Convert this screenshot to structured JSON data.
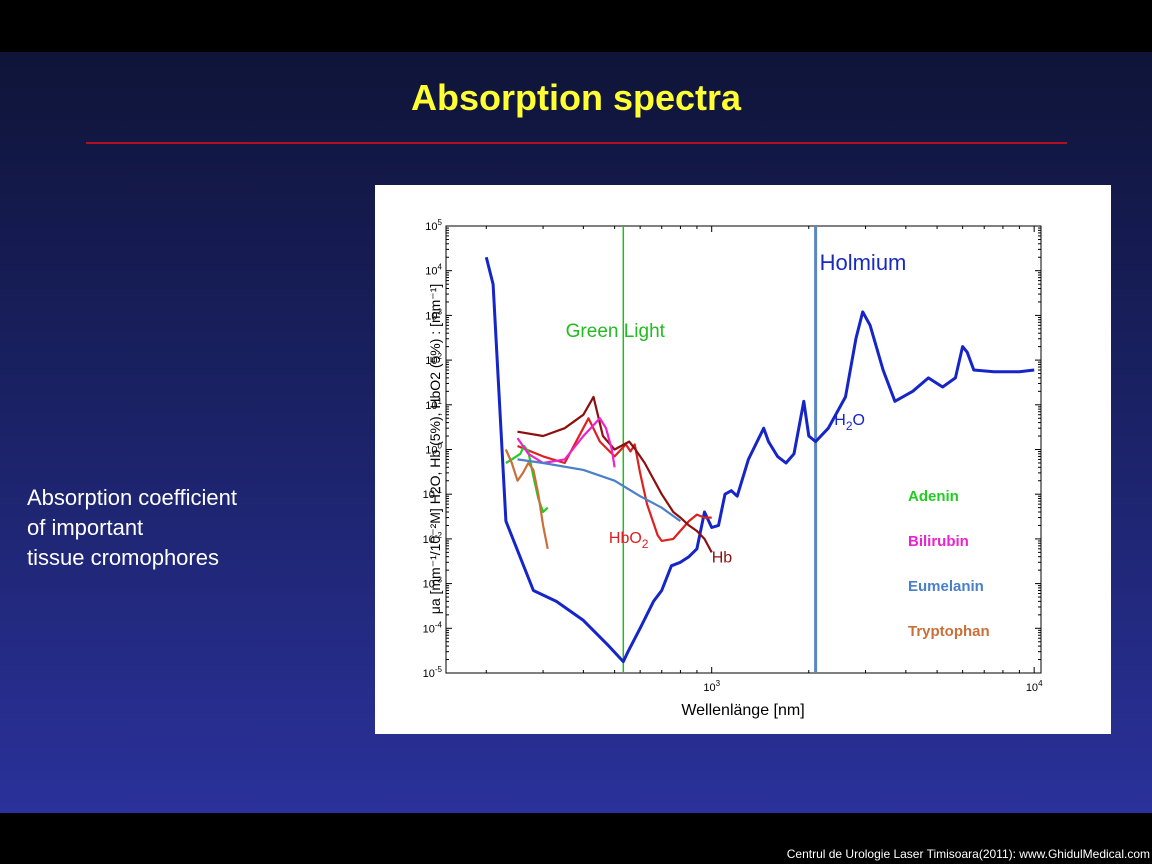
{
  "slide": {
    "title": "Absorption spectra",
    "description": [
      "Absorption coefficient",
      "of important",
      "tissue cromophores"
    ],
    "footer": "Centrul de Urologie Laser Timisoara(2011): www.GhidulMedical.com",
    "colors": {
      "title": "#ffff33",
      "rule": "#b01020",
      "background": "#1a2163"
    }
  },
  "chart_data": {
    "type": "line",
    "title": "",
    "xlabel": "Wellenlänge [nm]",
    "ylabel": "μa [mm⁻¹/10⁻²M]   H2O, Hb (5%), HbO2 (5%) : [mm⁻¹]",
    "xscale": "log",
    "yscale": "log",
    "xlim": [
      150,
      10500
    ],
    "ylim": [
      1e-05,
      100000.0
    ],
    "x_ticks": [
      "10^3",
      "10^4"
    ],
    "y_ticks": [
      "10^-5",
      "10^-4",
      "10^-3",
      "10^-2",
      "10^-1",
      "10^0",
      "10^1",
      "10^2",
      "10^3",
      "10^4",
      "10^5"
    ],
    "grid": false,
    "markers": [
      {
        "label": "Green Light",
        "x": 532,
        "color": "#22bb22"
      },
      {
        "label": "Holmium",
        "x": 2100,
        "color": "#5a87bf"
      }
    ],
    "series": [
      {
        "name": "H2O",
        "color": "#1525c8",
        "label_pos": [
          2400,
          3.5
        ],
        "points": [
          [
            200,
            20000
          ],
          [
            210,
            5000
          ],
          [
            230,
            0.025
          ],
          [
            280,
            0.0007
          ],
          [
            330,
            0.0004
          ],
          [
            400,
            0.00015
          ],
          [
            480,
            4e-05
          ],
          [
            532,
            1.8e-05
          ],
          [
            550,
            3e-05
          ],
          [
            600,
            0.0001
          ],
          [
            660,
            0.0004
          ],
          [
            700,
            0.0007
          ],
          [
            750,
            0.0025
          ],
          [
            800,
            0.003
          ],
          [
            850,
            0.004
          ],
          [
            900,
            0.006
          ],
          [
            950,
            0.04
          ],
          [
            1000,
            0.018
          ],
          [
            1050,
            0.02
          ],
          [
            1100,
            0.1
          ],
          [
            1150,
            0.12
          ],
          [
            1200,
            0.09
          ],
          [
            1300,
            0.6
          ],
          [
            1450,
            3
          ],
          [
            1500,
            1.5
          ],
          [
            1600,
            0.7
          ],
          [
            1700,
            0.5
          ],
          [
            1800,
            0.8
          ],
          [
            1930,
            12
          ],
          [
            2000,
            2
          ],
          [
            2100,
            1.5
          ],
          [
            2300,
            3
          ],
          [
            2600,
            15
          ],
          [
            2800,
            300
          ],
          [
            2940,
            1200
          ],
          [
            3100,
            600
          ],
          [
            3400,
            60
          ],
          [
            3700,
            12
          ],
          [
            4200,
            20
          ],
          [
            4700,
            40
          ],
          [
            5200,
            25
          ],
          [
            5700,
            40
          ],
          [
            6000,
            200
          ],
          [
            6200,
            150
          ],
          [
            6500,
            60
          ],
          [
            7500,
            55
          ],
          [
            9000,
            55
          ],
          [
            10000,
            60
          ]
        ]
      },
      {
        "name": "HbO2",
        "color": "#dd2020",
        "label_pos": [
          480,
          0.008
        ],
        "points": [
          [
            250,
            1.2
          ],
          [
            300,
            0.7
          ],
          [
            350,
            0.5
          ],
          [
            415,
            5
          ],
          [
            450,
            1.5
          ],
          [
            500,
            0.7
          ],
          [
            542,
            1.3
          ],
          [
            560,
            0.9
          ],
          [
            577,
            1.3
          ],
          [
            600,
            0.3
          ],
          [
            630,
            0.06
          ],
          [
            680,
            0.012
          ],
          [
            700,
            0.009
          ],
          [
            760,
            0.01
          ],
          [
            850,
            0.025
          ],
          [
            900,
            0.035
          ],
          [
            950,
            0.03
          ],
          [
            1000,
            0.03
          ]
        ]
      },
      {
        "name": "Hb",
        "color": "#8b1010",
        "label_pos": [
          1000,
          0.003
        ],
        "points": [
          [
            250,
            2.5
          ],
          [
            300,
            2
          ],
          [
            350,
            3
          ],
          [
            400,
            6
          ],
          [
            430,
            15
          ],
          [
            460,
            2
          ],
          [
            500,
            1
          ],
          [
            555,
            1.5
          ],
          [
            580,
            1
          ],
          [
            620,
            0.5
          ],
          [
            700,
            0.1
          ],
          [
            760,
            0.04
          ],
          [
            800,
            0.03
          ],
          [
            850,
            0.02
          ],
          [
            900,
            0.015
          ],
          [
            950,
            0.01
          ],
          [
            1000,
            0.005
          ]
        ]
      },
      {
        "name": "Adenin",
        "color": "#22cc22",
        "points": [
          [
            230,
            0.5
          ],
          [
            240,
            0.6
          ],
          [
            255,
            0.8
          ],
          [
            262,
            1.2
          ],
          [
            270,
            0.9
          ],
          [
            280,
            0.25
          ],
          [
            290,
            0.08
          ],
          [
            300,
            0.04
          ],
          [
            310,
            0.05
          ]
        ]
      },
      {
        "name": "Bilirubin",
        "color": "#ee22cc",
        "points": [
          [
            250,
            1.8
          ],
          [
            270,
            0.8
          ],
          [
            300,
            0.5
          ],
          [
            350,
            0.6
          ],
          [
            400,
            2
          ],
          [
            450,
            5
          ],
          [
            470,
            3
          ],
          [
            490,
            1
          ],
          [
            500,
            0.4
          ]
        ]
      },
      {
        "name": "Eumelanin",
        "color": "#4a80c8",
        "points": [
          [
            250,
            0.6
          ],
          [
            300,
            0.5
          ],
          [
            400,
            0.35
          ],
          [
            500,
            0.2
          ],
          [
            600,
            0.09
          ],
          [
            700,
            0.05
          ],
          [
            800,
            0.025
          ]
        ]
      },
      {
        "name": "Tryptophan",
        "color": "#c8703a",
        "points": [
          [
            230,
            1
          ],
          [
            240,
            0.5
          ],
          [
            250,
            0.2
          ],
          [
            260,
            0.3
          ],
          [
            270,
            0.5
          ],
          [
            280,
            0.35
          ],
          [
            290,
            0.1
          ],
          [
            300,
            0.02
          ],
          [
            310,
            0.006
          ]
        ]
      }
    ],
    "legend": {
      "position": "right",
      "entries": [
        {
          "name": "Adenin",
          "color": "#22cc22"
        },
        {
          "name": "Bilirubin",
          "color": "#ee22cc"
        },
        {
          "name": "Eumelanin",
          "color": "#4a80c8"
        },
        {
          "name": "Tryptophan",
          "color": "#c8703a"
        }
      ]
    }
  }
}
